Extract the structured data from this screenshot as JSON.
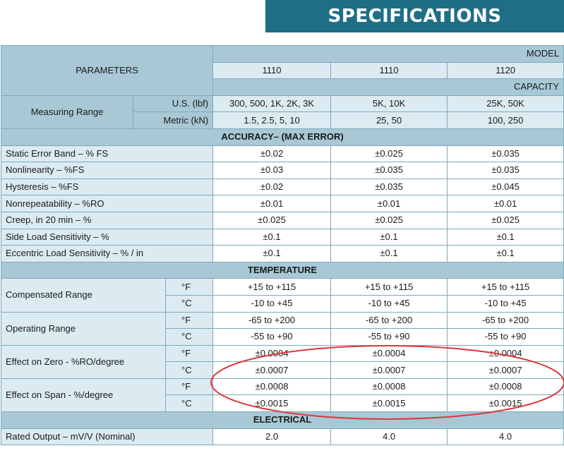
{
  "title": "SPECIFICATIONS",
  "header": {
    "parameters": "PARAMETERS",
    "model_label": "MODEL",
    "models": [
      "1110",
      "1110",
      "1120"
    ],
    "capacity_label": "CAPACITY"
  },
  "measuring_range": {
    "label": "Measuring Range",
    "us_unit": "U.S. (lbf)",
    "us_values": [
      "300, 500, 1K, 2K, 3K",
      "5K, 10K",
      "25K, 50K"
    ],
    "metric_unit": "Metric (kN)",
    "metric_values": [
      "1.5, 2.5, 5, 10",
      "25, 50",
      "100, 250"
    ]
  },
  "accuracy": {
    "section": "ACCURACY– (MAX ERROR)",
    "rows": [
      {
        "label": "Static Error Band – % FS",
        "values": [
          "±0.02",
          "±0.025",
          "±0.035"
        ]
      },
      {
        "label": "Nonlinearity – %FS",
        "values": [
          "±0.03",
          "±0.035",
          "±0.035"
        ]
      },
      {
        "label": "Hysteresis – %FS",
        "values": [
          "±0.02",
          "±0.035",
          "±0.045"
        ]
      },
      {
        "label": "Nonrepeatability – %RO",
        "values": [
          "±0.01",
          "±0.01",
          "±0.01"
        ]
      },
      {
        "label": "Creep, in 20 min – %",
        "values": [
          "±0.025",
          "±0.025",
          "±0.025"
        ]
      },
      {
        "label": "Side Load Sensitivity – %",
        "values": [
          "±0.1",
          "±0.1",
          "±0.1"
        ]
      },
      {
        "label": "Eccentric Load Sensitivity – % / in",
        "values": [
          "±0.1",
          "±0.1",
          "±0.1"
        ]
      }
    ]
  },
  "temperature": {
    "section": "TEMPERATURE",
    "unit_f": "°F",
    "unit_c": "°C",
    "groups": [
      {
        "label": "Compensated Range",
        "f": [
          "+15 to +115",
          "+15 to +115",
          "+15 to +115"
        ],
        "c": [
          "-10 to +45",
          "-10 to +45",
          "-10 to +45"
        ]
      },
      {
        "label": "Operating Range",
        "f": [
          "-65 to +200",
          "-65 to +200",
          "-65 to +200"
        ],
        "c": [
          "-55 to +90",
          "-55 to +90",
          "-55 to +90"
        ]
      },
      {
        "label": "Effect on Zero - %RO/degree",
        "f": [
          "±0.0004",
          "±0.0004",
          "±0.0004"
        ],
        "c": [
          "±0.0007",
          "±0.0007",
          "±0.0007"
        ]
      },
      {
        "label": "Effect on Span - %/degree",
        "f": [
          "±0.0008",
          "±0.0008",
          "±0.0008"
        ],
        "c": [
          "±0.0015",
          "±0.0015",
          "±0.0015"
        ]
      }
    ]
  },
  "electrical": {
    "section": "ELECTRICAL",
    "rows": [
      {
        "label": "Rated Output – mV/V (Nominal)",
        "values": [
          "2.0",
          "4.0",
          "4.0"
        ]
      }
    ]
  },
  "colors": {
    "title_bg": "#1e6e86",
    "header_blue": "#a8c8d6",
    "row_light_blue": "#dcebf2",
    "annotation_ellipse": "#d9383a"
  }
}
